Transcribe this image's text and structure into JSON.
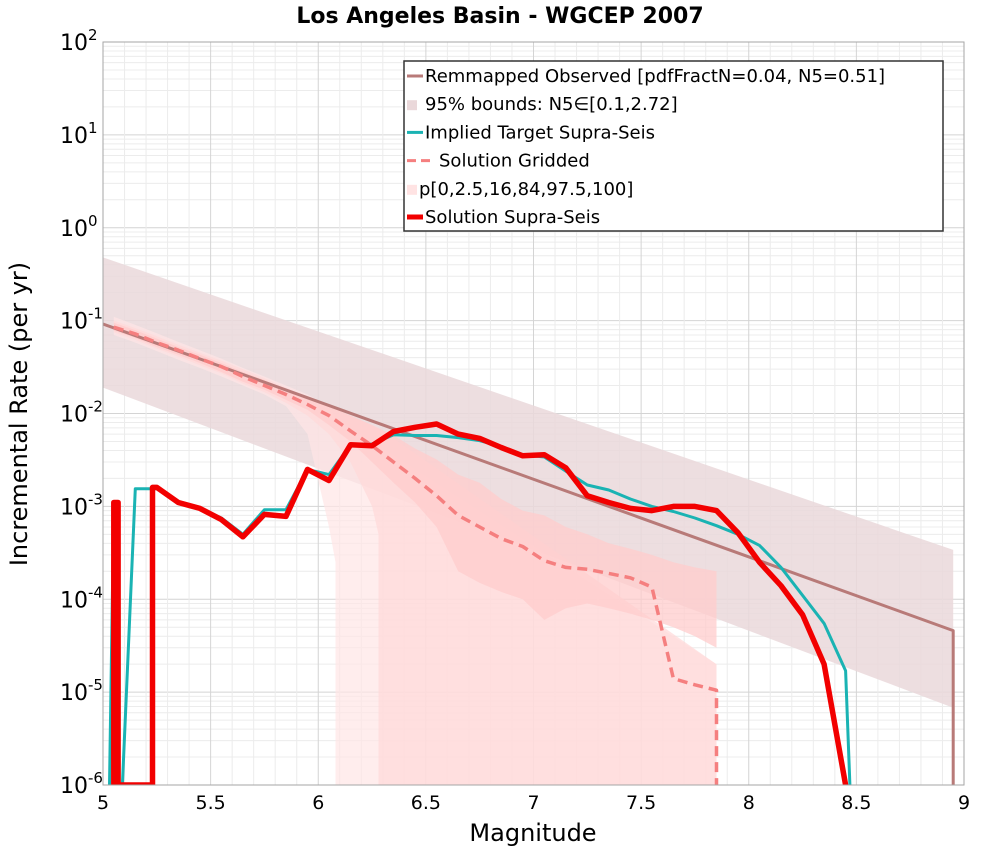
{
  "chart_data": {
    "type": "line",
    "title": "Los Angeles Basin - WGCEP 2007",
    "xlabel": "Magnitude",
    "ylabel": "Incremental Rate (per yr)",
    "xlim": [
      5,
      9
    ],
    "ylim": [
      1e-06,
      100
    ],
    "yscale": "log",
    "grid": true,
    "legend_position": "top-right",
    "xticks": [
      "5",
      "5.5",
      "6",
      "6.5",
      "7",
      "7.5",
      "8",
      "8.5",
      "9"
    ],
    "yticks": [
      {
        "value": 1e-06,
        "base": "10",
        "exp": "-6"
      },
      {
        "value": 1e-05,
        "base": "10",
        "exp": "-5"
      },
      {
        "value": 0.0001,
        "base": "10",
        "exp": "-4"
      },
      {
        "value": 0.001,
        "base": "10",
        "exp": "-3"
      },
      {
        "value": 0.01,
        "base": "10",
        "exp": "-2"
      },
      {
        "value": 0.1,
        "base": "10",
        "exp": "-1"
      },
      {
        "value": 1,
        "base": "10",
        "exp": "0"
      },
      {
        "value": 10,
        "base": "10",
        "exp": "1"
      },
      {
        "value": 100,
        "base": "10",
        "exp": "2"
      }
    ],
    "legend": [
      {
        "label": "Remmapped Observed [pdfFractN=0.04, N5=0.51]",
        "style": "line",
        "color": "#b87a78"
      },
      {
        "label": "95% bounds: N5∈[0.1,2.72]",
        "style": "band",
        "color": "#ead8da"
      },
      {
        "label": "Implied Target Supra-Seis",
        "style": "line",
        "color": "#1ab3b3"
      },
      {
        "label": "Solution Gridded",
        "style": "dashed",
        "color": "#f57f7f"
      },
      {
        "label": "p[0,2.5,16,84,97.5,100]",
        "style": "band",
        "color": "#ffe3e3"
      },
      {
        "label": "Solution Supra-Seis",
        "style": "thick",
        "color": "#f20000"
      }
    ],
    "series": [
      {
        "key": "observed",
        "color": "#b87a78",
        "x": [
          5.0,
          8.95,
          8.95
        ],
        "y": [
          0.092,
          4.6e-05,
          1e-06
        ]
      },
      {
        "key": "bounds95",
        "color": "#ead8da",
        "x": [
          5.0,
          8.95
        ],
        "y_low": [
          0.019,
          6.8e-06
        ],
        "y_high": [
          0.48,
          0.00034
        ]
      },
      {
        "key": "implied_target",
        "color": "#1ab3b3",
        "x": [
          5.03,
          5.05,
          5.07,
          5.09,
          5.15,
          5.25,
          5.35,
          5.45,
          5.55,
          5.65,
          5.75,
          5.85,
          5.95,
          6.05,
          6.15,
          6.25,
          6.35,
          6.45,
          6.55,
          6.65,
          6.75,
          6.85,
          6.95,
          7.05,
          7.15,
          7.25,
          7.35,
          7.45,
          7.55,
          7.65,
          7.75,
          7.85,
          7.95,
          8.05,
          8.15,
          8.25,
          8.35,
          8.45,
          8.47
        ],
        "y": [
          1e-06,
          0.0011,
          1e-06,
          1e-06,
          0.00155,
          0.00155,
          0.0011,
          0.00095,
          0.00075,
          0.0005,
          0.00092,
          0.00092,
          0.0025,
          0.0022,
          0.0046,
          0.0047,
          0.0059,
          0.0058,
          0.0058,
          0.0055,
          0.0051,
          0.0044,
          0.0036,
          0.0034,
          0.0024,
          0.0017,
          0.0015,
          0.0012,
          0.001,
          0.00088,
          0.00075,
          0.00062,
          0.0005,
          0.00038,
          0.00022,
          0.00011,
          5.5e-05,
          1.7e-05,
          1e-06
        ]
      },
      {
        "key": "solution_gridded",
        "color": "#f57f7f",
        "x": [
          5.05,
          5.15,
          5.25,
          5.35,
          5.45,
          5.55,
          5.65,
          5.75,
          5.85,
          5.95,
          6.05,
          6.15,
          6.25,
          6.35,
          6.45,
          6.55,
          6.65,
          6.75,
          6.85,
          6.95,
          7.05,
          7.15,
          7.25,
          7.35,
          7.45,
          7.55,
          7.65,
          7.75,
          7.85,
          7.85
        ],
        "y": [
          0.085,
          0.072,
          0.058,
          0.048,
          0.039,
          0.032,
          0.025,
          0.02,
          0.016,
          0.0125,
          0.0095,
          0.0065,
          0.0045,
          0.003,
          0.002,
          0.0013,
          0.0008,
          0.0006,
          0.00045,
          0.00037,
          0.00026,
          0.00022,
          0.00021,
          0.00019,
          0.00017,
          0.000135,
          1.4e-05,
          1.2e-05,
          1.05e-05,
          1e-06
        ]
      },
      {
        "key": "percentile_band_outer",
        "color": "#ffe6e6",
        "x": [
          5.05,
          5.15,
          5.25,
          5.35,
          5.45,
          5.55,
          5.65,
          5.75,
          5.85,
          5.95,
          6.05,
          6.08,
          6.08,
          7.85
        ],
        "y_low": [
          0.07,
          0.058,
          0.047,
          0.038,
          0.031,
          0.025,
          0.02,
          0.016,
          0.012,
          0.006,
          0.0006,
          0.00025,
          1e-06,
          1e-06
        ],
        "y_high": [
          0.11,
          0.09,
          0.073,
          0.059,
          0.048,
          0.039,
          0.031,
          0.025,
          0.02,
          0.016,
          0.012,
          0.009,
          0.009,
          2e-05
        ]
      },
      {
        "key": "percentile_band_inner",
        "color": "#ffd9d9",
        "x": [
          5.05,
          5.15,
          5.25,
          5.35,
          5.45,
          5.55,
          5.65,
          5.75,
          5.85,
          5.95,
          6.05,
          6.15,
          6.25,
          6.28,
          6.28,
          7.85
        ],
        "y_low": [
          0.075,
          0.062,
          0.05,
          0.041,
          0.033,
          0.027,
          0.021,
          0.017,
          0.013,
          0.0095,
          0.006,
          0.003,
          0.001,
          0.0005,
          1e-06,
          1e-06
        ],
        "y_high": [
          0.1,
          0.083,
          0.068,
          0.055,
          0.045,
          0.037,
          0.03,
          0.024,
          0.019,
          0.015,
          0.012,
          0.0095,
          0.0075,
          0.007,
          0.007,
          2e-05
        ]
      },
      {
        "key": "percentile_band_core",
        "color": "#ffcccc",
        "x": [
          5.05,
          5.15,
          5.25,
          5.35,
          5.45,
          5.55,
          5.65,
          5.75,
          5.85,
          5.95,
          6.05,
          6.15,
          6.25,
          6.35,
          6.45,
          6.55,
          6.65,
          6.75,
          6.85,
          6.95,
          7.05,
          7.15,
          7.25,
          7.35,
          7.45,
          7.55,
          7.65,
          7.75,
          7.85
        ],
        "y_low": [
          0.078,
          0.065,
          0.052,
          0.043,
          0.035,
          0.028,
          0.022,
          0.018,
          0.014,
          0.011,
          0.0075,
          0.005,
          0.003,
          0.0018,
          0.0011,
          0.0006,
          0.0002,
          0.00015,
          0.00012,
          0.0001,
          6e-05,
          8e-05,
          9e-05,
          8e-05,
          7e-05,
          6e-05,
          5e-05,
          4e-05,
          3e-05
        ],
        "y_high": [
          0.095,
          0.079,
          0.064,
          0.052,
          0.043,
          0.035,
          0.028,
          0.023,
          0.018,
          0.0145,
          0.012,
          0.0095,
          0.0075,
          0.0058,
          0.0042,
          0.0032,
          0.0022,
          0.0018,
          0.0012,
          0.0009,
          0.0008,
          0.0006,
          0.0005,
          0.0004,
          0.00035,
          0.0003,
          0.00025,
          0.00022,
          0.0002
        ]
      },
      {
        "key": "solution_supra",
        "color": "#f20000",
        "x": [
          5.05,
          5.05,
          5.07,
          5.07,
          5.23,
          5.23,
          5.25,
          5.35,
          5.45,
          5.55,
          5.65,
          5.75,
          5.85,
          5.95,
          6.05,
          6.15,
          6.25,
          6.35,
          6.45,
          6.55,
          6.65,
          6.75,
          6.85,
          6.95,
          7.05,
          7.15,
          7.25,
          7.35,
          7.45,
          7.55,
          7.65,
          7.75,
          7.85,
          7.95,
          8.05,
          8.15,
          8.25,
          8.35,
          8.45
        ],
        "y": [
          1e-06,
          0.0011,
          0.0011,
          1e-06,
          1e-06,
          0.0016,
          0.0016,
          0.0011,
          0.00095,
          0.00072,
          0.00047,
          0.00082,
          0.00078,
          0.0025,
          0.0019,
          0.0046,
          0.0045,
          0.0064,
          0.0071,
          0.0077,
          0.006,
          0.0054,
          0.0043,
          0.0035,
          0.0036,
          0.0026,
          0.0013,
          0.0011,
          0.00095,
          0.0009,
          0.001,
          0.001,
          0.0009,
          0.00052,
          0.00025,
          0.00014,
          6.8e-05,
          2e-05,
          1e-06
        ]
      }
    ]
  }
}
